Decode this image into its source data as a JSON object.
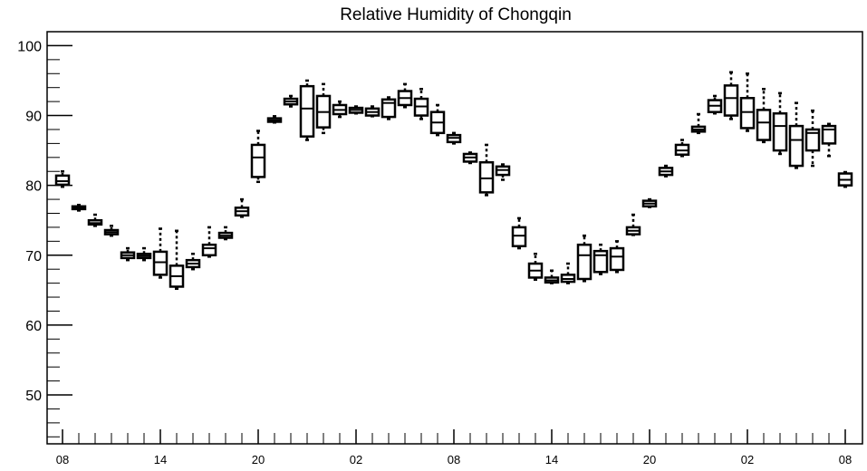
{
  "chart_data": {
    "type": "boxplot",
    "title": "Relative Humidity of Chongqin",
    "xlabel": "",
    "ylabel": "",
    "ylim": [
      43,
      102
    ],
    "y_ticks": [
      50,
      60,
      70,
      80,
      90,
      100
    ],
    "grid": false,
    "legend": "none",
    "x_tick_labels": [
      {
        "hour_index": 0,
        "label": "08"
      },
      {
        "hour_index": 6,
        "label": "14"
      },
      {
        "hour_index": 12,
        "label": "20"
      },
      {
        "hour_index": 18,
        "label": "02"
      },
      {
        "hour_index": 24,
        "label": "08"
      },
      {
        "hour_index": 30,
        "label": "14"
      },
      {
        "hour_index": 36,
        "label": "20"
      },
      {
        "hour_index": 42,
        "label": "02"
      },
      {
        "hour_index": 48,
        "label": "08"
      }
    ],
    "boxes": [
      {
        "h": 0,
        "min": 79.8,
        "q1": 80.1,
        "median": 80.6,
        "q3": 81.4,
        "max": 82.0
      },
      {
        "h": 1,
        "min": 76.4,
        "q1": 76.6,
        "median": 76.8,
        "q3": 77.0,
        "max": 77.2
      },
      {
        "h": 2,
        "min": 74.2,
        "q1": 74.4,
        "median": 74.6,
        "q3": 75.0,
        "max": 75.8
      },
      {
        "h": 3,
        "min": 72.8,
        "q1": 73.0,
        "median": 73.3,
        "q3": 73.6,
        "max": 74.2
      },
      {
        "h": 4,
        "min": 69.3,
        "q1": 69.6,
        "median": 70.0,
        "q3": 70.4,
        "max": 71.0
      },
      {
        "h": 5,
        "min": 69.3,
        "q1": 69.6,
        "median": 69.9,
        "q3": 70.2,
        "max": 71.0
      },
      {
        "h": 6,
        "min": 66.8,
        "q1": 67.2,
        "median": 69.0,
        "q3": 70.5,
        "max": 73.8
      },
      {
        "h": 7,
        "min": 65.2,
        "q1": 65.5,
        "median": 67.0,
        "q3": 68.5,
        "max": 73.5
      },
      {
        "h": 8,
        "min": 68.0,
        "q1": 68.3,
        "median": 68.8,
        "q3": 69.3,
        "max": 70.2
      },
      {
        "h": 9,
        "min": 69.8,
        "q1": 70.0,
        "median": 71.0,
        "q3": 71.5,
        "max": 74.0
      },
      {
        "h": 10,
        "min": 72.3,
        "q1": 72.5,
        "median": 72.8,
        "q3": 73.2,
        "max": 74.0
      },
      {
        "h": 11,
        "min": 75.5,
        "q1": 75.7,
        "median": 76.3,
        "q3": 76.8,
        "max": 78.0
      },
      {
        "h": 12,
        "min": 80.5,
        "q1": 81.2,
        "median": 84.0,
        "q3": 85.8,
        "max": 87.8
      },
      {
        "h": 13,
        "min": 89.0,
        "q1": 89.1,
        "median": 89.3,
        "q3": 89.6,
        "max": 89.9
      },
      {
        "h": 14,
        "min": 91.3,
        "q1": 91.6,
        "median": 92.0,
        "q3": 92.4,
        "max": 92.8
      },
      {
        "h": 15,
        "min": 86.5,
        "q1": 87.0,
        "median": 91.0,
        "q3": 94.2,
        "max": 95.0
      },
      {
        "h": 16,
        "min": 87.5,
        "q1": 88.3,
        "median": 90.5,
        "q3": 92.8,
        "max": 94.5
      },
      {
        "h": 17,
        "min": 89.8,
        "q1": 90.2,
        "median": 90.8,
        "q3": 91.5,
        "max": 92.0
      },
      {
        "h": 18,
        "min": 90.3,
        "q1": 90.4,
        "median": 90.8,
        "q3": 91.1,
        "max": 91.3
      },
      {
        "h": 19,
        "min": 89.9,
        "q1": 90.0,
        "median": 90.5,
        "q3": 91.0,
        "max": 91.3
      },
      {
        "h": 20,
        "min": 89.5,
        "q1": 89.8,
        "median": 91.8,
        "q3": 92.3,
        "max": 92.6
      },
      {
        "h": 21,
        "min": 91.2,
        "q1": 91.5,
        "median": 92.5,
        "q3": 93.5,
        "max": 94.5
      },
      {
        "h": 22,
        "min": 89.5,
        "q1": 90.0,
        "median": 91.3,
        "q3": 92.4,
        "max": 93.8
      },
      {
        "h": 23,
        "min": 87.2,
        "q1": 87.5,
        "median": 89.0,
        "q3": 90.5,
        "max": 91.5
      },
      {
        "h": 24,
        "min": 86.0,
        "q1": 86.2,
        "median": 86.8,
        "q3": 87.2,
        "max": 87.5
      },
      {
        "h": 25,
        "min": 83.2,
        "q1": 83.4,
        "median": 84.0,
        "q3": 84.5,
        "max": 84.7
      },
      {
        "h": 26,
        "min": 78.6,
        "q1": 79.0,
        "median": 81.0,
        "q3": 83.3,
        "max": 85.8
      },
      {
        "h": 27,
        "min": 80.8,
        "q1": 81.5,
        "median": 82.2,
        "q3": 82.7,
        "max": 83.0
      },
      {
        "h": 28,
        "min": 71.0,
        "q1": 71.3,
        "median": 72.8,
        "q3": 74.0,
        "max": 75.3
      },
      {
        "h": 29,
        "min": 66.5,
        "q1": 66.8,
        "median": 67.8,
        "q3": 68.8,
        "max": 70.2
      },
      {
        "h": 30,
        "min": 66.0,
        "q1": 66.1,
        "median": 66.4,
        "q3": 66.8,
        "max": 67.8
      },
      {
        "h": 31,
        "min": 66.0,
        "q1": 66.2,
        "median": 66.6,
        "q3": 67.2,
        "max": 68.8
      },
      {
        "h": 32,
        "min": 66.3,
        "q1": 66.6,
        "median": 70.0,
        "q3": 71.5,
        "max": 72.8
      },
      {
        "h": 33,
        "min": 67.3,
        "q1": 67.6,
        "median": 70.0,
        "q3": 70.6,
        "max": 71.5
      },
      {
        "h": 34,
        "min": 67.6,
        "q1": 67.9,
        "median": 69.8,
        "q3": 71.0,
        "max": 72.0
      },
      {
        "h": 35,
        "min": 72.9,
        "q1": 73.0,
        "median": 73.5,
        "q3": 74.0,
        "max": 75.8
      },
      {
        "h": 36,
        "min": 76.9,
        "q1": 77.0,
        "median": 77.4,
        "q3": 77.8,
        "max": 78.0
      },
      {
        "h": 37,
        "min": 81.3,
        "q1": 81.5,
        "median": 82.0,
        "q3": 82.5,
        "max": 82.8
      },
      {
        "h": 38,
        "min": 84.2,
        "q1": 84.4,
        "median": 85.0,
        "q3": 85.8,
        "max": 86.5
      },
      {
        "h": 39,
        "min": 87.5,
        "q1": 87.7,
        "median": 88.0,
        "q3": 88.4,
        "max": 90.2
      },
      {
        "h": 40,
        "min": 90.3,
        "q1": 90.5,
        "median": 91.4,
        "q3": 92.2,
        "max": 92.8
      },
      {
        "h": 41,
        "min": 89.5,
        "q1": 90.0,
        "median": 92.5,
        "q3": 94.3,
        "max": 96.2
      },
      {
        "h": 42,
        "min": 87.8,
        "q1": 88.2,
        "median": 90.5,
        "q3": 92.5,
        "max": 96.0
      },
      {
        "h": 43,
        "min": 86.2,
        "q1": 86.5,
        "median": 89.0,
        "q3": 90.8,
        "max": 93.8
      },
      {
        "h": 44,
        "min": 84.5,
        "q1": 85.0,
        "median": 88.5,
        "q3": 90.3,
        "max": 93.2
      },
      {
        "h": 45,
        "min": 82.5,
        "q1": 82.8,
        "median": 86.5,
        "q3": 88.5,
        "max": 91.8
      },
      {
        "h": 46,
        "min": 82.8,
        "q1": 85.0,
        "median": 87.5,
        "q3": 88.0,
        "max": 90.7
      },
      {
        "h": 47,
        "min": 84.2,
        "q1": 86.0,
        "median": 88.0,
        "q3": 88.5,
        "max": 88.8
      },
      {
        "h": 48,
        "min": 79.8,
        "q1": 80.0,
        "median": 80.8,
        "q3": 81.7,
        "max": 81.9
      }
    ]
  }
}
